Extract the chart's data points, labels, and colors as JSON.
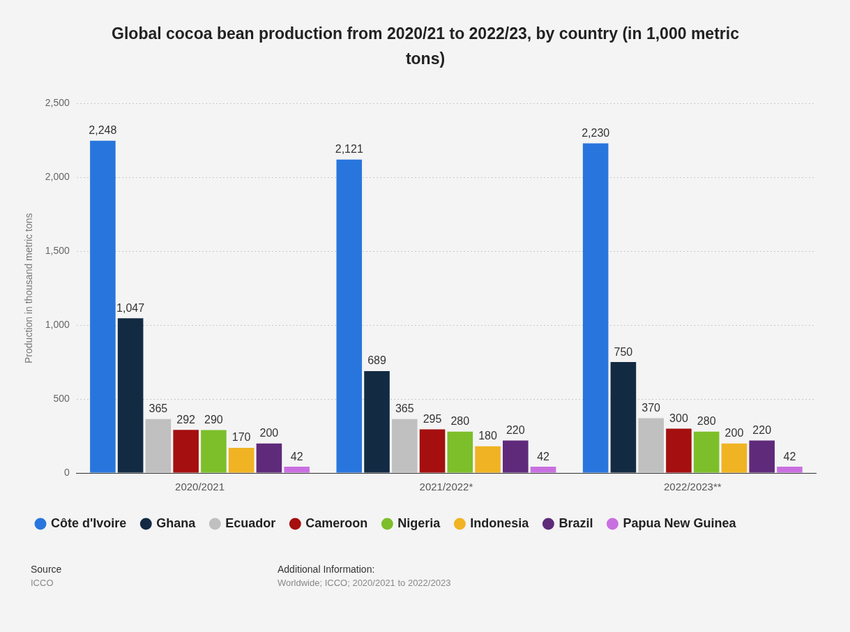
{
  "chart_data": {
    "type": "bar",
    "title": "Global cocoa bean production from 2020/21 to 2022/23, by country (in 1,000 metric tons)",
    "ylabel": "Production in thousand metric tons",
    "categories": [
      "2020/2021",
      "2021/2022*",
      "2022/2023**"
    ],
    "series": [
      {
        "name": "Côte d'Ivoire",
        "color": "#2876dd",
        "values": [
          2248,
          2121,
          2230
        ],
        "value_labels": [
          "2,248",
          "2,121",
          "2,230"
        ]
      },
      {
        "name": "Ghana",
        "color": "#132a43",
        "values": [
          1047,
          689,
          750
        ],
        "value_labels": [
          "1,047",
          "689",
          "750"
        ]
      },
      {
        "name": "Ecuador",
        "color": "#c0c0c0",
        "values": [
          365,
          365,
          370
        ],
        "value_labels": [
          "365",
          "365",
          "370"
        ]
      },
      {
        "name": "Cameroon",
        "color": "#a50f0f",
        "values": [
          292,
          295,
          300
        ],
        "value_labels": [
          "292",
          "295",
          "300"
        ]
      },
      {
        "name": "Nigeria",
        "color": "#7cbf2a",
        "values": [
          290,
          280,
          280
        ],
        "value_labels": [
          "290",
          "280",
          "280"
        ]
      },
      {
        "name": "Indonesia",
        "color": "#f0b323",
        "values": [
          170,
          180,
          200
        ],
        "value_labels": [
          "170",
          "180",
          "200"
        ]
      },
      {
        "name": "Brazil",
        "color": "#5f2a7a",
        "values": [
          200,
          220,
          220
        ],
        "value_labels": [
          "200",
          "220",
          "220"
        ]
      },
      {
        "name": "Papua New Guinea",
        "color": "#c970e0",
        "values": [
          42,
          42,
          42
        ],
        "value_labels": [
          "42",
          "42",
          "42"
        ]
      }
    ],
    "ylim": [
      0,
      2500
    ],
    "yticks": [
      0,
      500,
      {
        "value": 1000,
        "label": "1,000"
      },
      {
        "value": 1500,
        "label": "1,500"
      },
      {
        "value": 2000,
        "label": "2,000"
      },
      {
        "value": 2500,
        "label": "2,500"
      }
    ],
    "grid": "y",
    "legend": "bottom",
    "annotations": [
      "Source",
      "ICCO",
      "Additional Information:",
      "Worldwide; ICCO; 2020/2021 to 2022/2023"
    ]
  }
}
